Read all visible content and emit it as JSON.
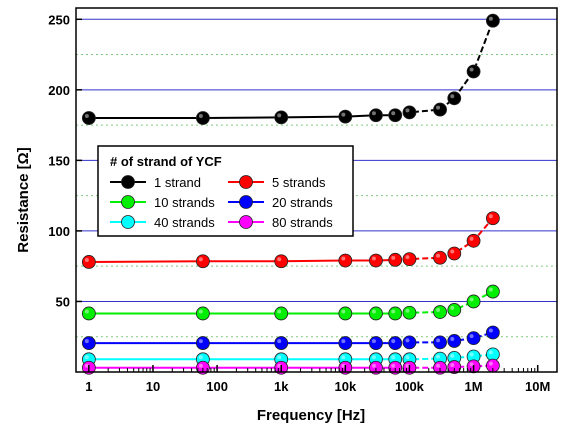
{
  "chart_data": {
    "type": "line",
    "title": "",
    "xlabel": "Frequency [Hz]",
    "ylabel": "Resistance [Ω]",
    "x_scale": "log",
    "xlim": [
      0.63,
      20000000
    ],
    "ylim": [
      0,
      258
    ],
    "x_ticks": [
      1,
      10,
      100,
      1000,
      10000,
      100000,
      1000000,
      10000000
    ],
    "x_tick_labels": [
      "1",
      "10",
      "100",
      "1k",
      "10k",
      "100k",
      "1M",
      "10M"
    ],
    "y_ticks": [
      50,
      100,
      150,
      200,
      250
    ],
    "y_tick_labels": [
      "50",
      "100",
      "150",
      "200",
      "250"
    ],
    "grid": {
      "major_y": true,
      "minor_y": true,
      "major_color": "#3333cc",
      "minor_color": "#7fc97f"
    },
    "legend": {
      "title": "# of strand of YCF",
      "placement": "center-left",
      "columns": 2
    },
    "series": [
      {
        "name": "1 strand",
        "color": "#000000",
        "x": [
          1,
          60,
          1000,
          10000,
          30000,
          60000,
          100000,
          300000,
          500000,
          1000000,
          2000000
        ],
        "values": [
          180,
          180,
          180.5,
          181,
          182,
          182,
          184,
          186,
          194,
          213,
          249
        ]
      },
      {
        "name": "5 strands",
        "color": "#ff0000",
        "x": [
          1,
          60,
          1000,
          10000,
          30000,
          60000,
          100000,
          300000,
          500000,
          1000000,
          2000000
        ],
        "values": [
          78,
          78.5,
          78.5,
          79,
          79,
          79.5,
          80,
          81,
          84,
          93,
          109
        ]
      },
      {
        "name": "10 strands",
        "color": "#00ee00",
        "x": [
          1,
          60,
          1000,
          10000,
          30000,
          60000,
          100000,
          300000,
          500000,
          1000000,
          2000000
        ],
        "values": [
          41.5,
          41.5,
          41.5,
          41.5,
          41.5,
          41.5,
          42,
          42.5,
          44,
          50,
          57
        ]
      },
      {
        "name": "20 strands",
        "color": "#0000ff",
        "x": [
          1,
          60,
          1000,
          10000,
          30000,
          60000,
          100000,
          300000,
          500000,
          1000000,
          2000000
        ],
        "values": [
          20.5,
          20.5,
          20.5,
          20.5,
          20.5,
          20.5,
          21,
          21,
          22,
          24,
          28
        ]
      },
      {
        "name": "40 strands",
        "color": "#00ffff",
        "x": [
          1,
          60,
          1000,
          10000,
          30000,
          60000,
          100000,
          300000,
          500000,
          1000000,
          2000000
        ],
        "values": [
          9,
          9,
          9,
          9,
          9,
          9,
          9,
          9.5,
          10,
          11,
          12.5
        ]
      },
      {
        "name": "80 strands",
        "color": "#ff00ff",
        "x": [
          1,
          60,
          1000,
          10000,
          30000,
          60000,
          100000,
          300000,
          500000,
          1000000,
          2000000
        ],
        "values": [
          3,
          3,
          3,
          3,
          3,
          3,
          3,
          3,
          3.5,
          4,
          4.5
        ]
      }
    ]
  }
}
